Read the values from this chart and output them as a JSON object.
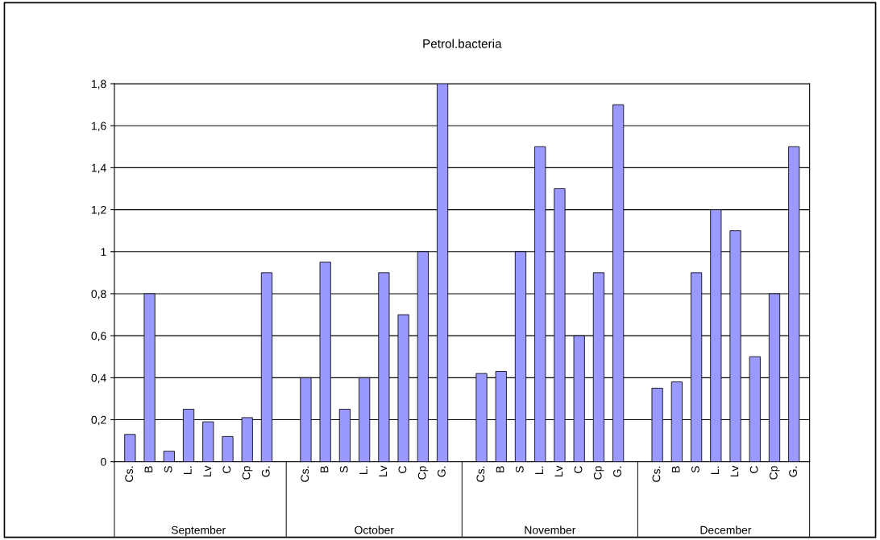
{
  "chart_data": {
    "type": "bar",
    "title": "Petrol.bacteria",
    "categories": [
      "Cs.",
      "B",
      "S",
      "L.",
      "Lv",
      "C",
      "Cp",
      "G.",
      "Cs.",
      "B",
      "S",
      "L.",
      "Lv",
      "C",
      "Cp",
      "G.",
      "Cs.",
      "B",
      "S",
      "L.",
      "Lv",
      "C",
      "Cp",
      "G.",
      "Cs.",
      "B",
      "S",
      "L.",
      "Lv",
      "C",
      "Cp",
      "G."
    ],
    "values": [
      0.13,
      0.8,
      0.05,
      0.25,
      0.19,
      0.12,
      0.21,
      0.9,
      0.4,
      0.95,
      0.25,
      0.4,
      0.9,
      0.7,
      1.0,
      1.8,
      0.42,
      0.43,
      1.0,
      1.5,
      1.3,
      0.6,
      0.9,
      1.7,
      0.35,
      0.38,
      0.9,
      1.2,
      1.1,
      0.5,
      0.8,
      1.5
    ],
    "color": "#9999ff",
    "annotations": [
      "September",
      "October",
      "November",
      "December"
    ],
    "ylim": [
      0,
      1.8
    ],
    "yticks": [
      0,
      {
        "value": 0.2,
        "label": "0,2"
      },
      {
        "value": 0.4,
        "label": "0,4"
      },
      {
        "value": 0.6,
        "label": "0,6"
      },
      {
        "value": 0.8,
        "label": "0,8"
      },
      1,
      {
        "value": 1.2,
        "label": "1,2"
      },
      {
        "value": 1.4,
        "label": "1,4"
      },
      {
        "value": 1.6,
        "label": "1,6"
      },
      {
        "value": 1.8,
        "label": "1,8"
      }
    ],
    "grid": "y",
    "legend": false
  }
}
